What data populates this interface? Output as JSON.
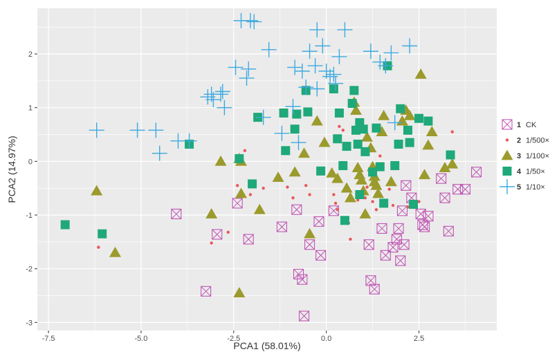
{
  "chart_data": {
    "type": "scatter",
    "xlabel": "PCA1 (58.01%)",
    "ylabel": "PCA2 (14.97%)",
    "xlim": [
      -7.8,
      4.6
    ],
    "ylim": [
      -3.15,
      2.85
    ],
    "x_ticks": [
      -7.5,
      -5.0,
      -2.5,
      0.0,
      2.5
    ],
    "x_tick_labels": [
      "-7.5",
      "-5.0",
      "-2.5",
      "0.0",
      "2.5"
    ],
    "y_ticks": [
      -3,
      -2,
      -1,
      0,
      1,
      2
    ],
    "y_tick_labels": [
      "-3",
      "-2",
      "-1",
      "0",
      "1",
      "2"
    ],
    "grid": true,
    "background": "#ebebeb",
    "legend_position": "right",
    "series": [
      {
        "name": "1 CK",
        "legend_num": "1",
        "legend_text": "CK",
        "marker": "boxed-x",
        "color": "#c055b4",
        "points": [
          [
            -4.05,
            -0.98
          ],
          [
            -2.95,
            -1.36
          ],
          [
            -3.25,
            -2.42
          ],
          [
            -2.4,
            -0.78
          ],
          [
            -2.1,
            -1.45
          ],
          [
            -1.2,
            -1.22
          ],
          [
            -0.8,
            -0.9
          ],
          [
            -0.75,
            -2.1
          ],
          [
            -0.65,
            -2.2
          ],
          [
            -0.6,
            -2.88
          ],
          [
            -0.45,
            -1.55
          ],
          [
            -0.2,
            -1.12
          ],
          [
            -0.15,
            -1.75
          ],
          [
            0.2,
            -0.92
          ],
          [
            1.15,
            -1.55
          ],
          [
            1.2,
            -2.22
          ],
          [
            1.3,
            -2.38
          ],
          [
            1.5,
            -1.25
          ],
          [
            1.6,
            -1.75
          ],
          [
            1.8,
            -1.6
          ],
          [
            1.9,
            -1.45
          ],
          [
            1.95,
            -1.25
          ],
          [
            2.0,
            -1.85
          ],
          [
            2.05,
            -0.92
          ],
          [
            2.1,
            -1.55
          ],
          [
            2.15,
            -0.45
          ],
          [
            2.3,
            -0.68
          ],
          [
            2.55,
            -0.98
          ],
          [
            2.6,
            -1.18
          ],
          [
            2.65,
            -1.22
          ],
          [
            2.75,
            -1.02
          ],
          [
            3.1,
            -0.32
          ],
          [
            3.2,
            -0.68
          ],
          [
            3.3,
            -1.3
          ],
          [
            3.55,
            -0.52
          ],
          [
            3.75,
            -0.52
          ],
          [
            4.05,
            -0.2
          ]
        ]
      },
      {
        "name": "2 1/500×",
        "legend_num": "2",
        "legend_text": "1/500×",
        "marker": "dot",
        "color": "#e8575a",
        "points": [
          [
            -6.15,
            -1.6
          ],
          [
            -3.1,
            -1.52
          ],
          [
            -2.65,
            -1.32
          ],
          [
            -2.4,
            -0.45
          ],
          [
            -2.2,
            0.2
          ],
          [
            -2.05,
            -0.62
          ],
          [
            -1.7,
            -0.5
          ],
          [
            -1.05,
            -0.48
          ],
          [
            -0.9,
            -0.68
          ],
          [
            -0.55,
            -0.45
          ],
          [
            -0.45,
            -0.62
          ],
          [
            0.2,
            -0.62
          ],
          [
            0.25,
            -0.78
          ],
          [
            0.3,
            -0.9
          ],
          [
            0.35,
            0.65
          ],
          [
            0.45,
            0.58
          ],
          [
            0.6,
            -1.15
          ],
          [
            0.65,
            -1.45
          ],
          [
            0.85,
            -0.72
          ],
          [
            1.0,
            -0.5
          ],
          [
            1.05,
            -0.68
          ],
          [
            1.1,
            -0.48
          ],
          [
            1.25,
            -0.75
          ],
          [
            1.35,
            -0.9
          ],
          [
            1.45,
            0.1
          ],
          [
            1.7,
            -0.52
          ],
          [
            1.8,
            -0.82
          ],
          [
            2.2,
            -0.85
          ],
          [
            2.5,
            -0.75
          ],
          [
            3.4,
            0.55
          ]
        ]
      },
      {
        "name": "3 1/100×",
        "legend_num": "3",
        "legend_text": "1/100×",
        "marker": "triangle",
        "color": "#9b9a2c",
        "points": [
          [
            -6.2,
            -0.55
          ],
          [
            -5.7,
            -1.7
          ],
          [
            -3.1,
            -0.98
          ],
          [
            -2.85,
            0.0
          ],
          [
            -2.35,
            0.05
          ],
          [
            -2.3,
            0.0
          ],
          [
            -2.3,
            -0.6
          ],
          [
            -2.35,
            -2.45
          ],
          [
            -1.8,
            -0.9
          ],
          [
            -1.3,
            -0.3
          ],
          [
            -0.85,
            -0.2
          ],
          [
            -0.6,
            0.15
          ],
          [
            -0.45,
            -1.35
          ],
          [
            -0.25,
            0.75
          ],
          [
            -0.05,
            0.35
          ],
          [
            0.15,
            -0.22
          ],
          [
            0.3,
            -0.32
          ],
          [
            0.55,
            -0.5
          ],
          [
            0.65,
            -0.68
          ],
          [
            0.75,
            1.1
          ],
          [
            0.8,
            0.95
          ],
          [
            0.85,
            -0.12
          ],
          [
            0.9,
            -0.25
          ],
          [
            0.95,
            -0.35
          ],
          [
            1.0,
            -0.55
          ],
          [
            1.05,
            -0.98
          ],
          [
            1.1,
            0.45
          ],
          [
            1.2,
            0.25
          ],
          [
            1.25,
            -0.1
          ],
          [
            1.3,
            -0.28
          ],
          [
            1.3,
            -0.38
          ],
          [
            1.35,
            -0.45
          ],
          [
            1.4,
            -0.6
          ],
          [
            1.5,
            0.55
          ],
          [
            1.55,
            0.85
          ],
          [
            1.75,
            -0.38
          ],
          [
            2.05,
            0.75
          ],
          [
            2.15,
            0.95
          ],
          [
            2.25,
            0.85
          ],
          [
            2.55,
            1.62
          ],
          [
            2.65,
            -0.25
          ],
          [
            2.75,
            0.3
          ],
          [
            2.85,
            0.55
          ],
          [
            3.2,
            -0.12
          ],
          [
            3.4,
            -0.05
          ]
        ]
      },
      {
        "name": "4 1/50×",
        "legend_num": "4",
        "legend_text": "1/50×",
        "marker": "square",
        "color": "#1fa879",
        "points": [
          [
            -7.05,
            -1.18
          ],
          [
            -6.05,
            -1.35
          ],
          [
            -3.7,
            0.32
          ],
          [
            -2.35,
            0.05
          ],
          [
            -2.0,
            -0.42
          ],
          [
            -1.85,
            0.82
          ],
          [
            -1.15,
            0.9
          ],
          [
            -1.1,
            0.2
          ],
          [
            -0.85,
            0.6
          ],
          [
            -0.8,
            0.88
          ],
          [
            -0.55,
            1.32
          ],
          [
            -0.5,
            0.92
          ],
          [
            -0.15,
            -0.18
          ],
          [
            0.2,
            1.35
          ],
          [
            0.3,
            0.42
          ],
          [
            0.35,
            0.9
          ],
          [
            0.45,
            -0.08
          ],
          [
            0.5,
            -1.1
          ],
          [
            0.55,
            0.28
          ],
          [
            0.7,
            1.08
          ],
          [
            0.75,
            1.32
          ],
          [
            0.8,
            0.58
          ],
          [
            0.85,
            0.32
          ],
          [
            0.9,
            0.72
          ],
          [
            0.9,
            -0.62
          ],
          [
            1.0,
            0.6
          ],
          [
            1.05,
            0.18
          ],
          [
            1.25,
            -0.2
          ],
          [
            1.35,
            0.62
          ],
          [
            1.45,
            -0.1
          ],
          [
            1.55,
            -0.78
          ],
          [
            1.65,
            1.78
          ],
          [
            1.85,
            -0.08
          ],
          [
            1.95,
            0.32
          ],
          [
            2.0,
            0.98
          ],
          [
            2.2,
            0.58
          ],
          [
            2.25,
            0.35
          ],
          [
            2.35,
            -0.8
          ],
          [
            2.5,
            0.8
          ],
          [
            2.75,
            0.75
          ],
          [
            3.35,
            0.12
          ]
        ]
      },
      {
        "name": "5 1/10×",
        "legend_num": "5",
        "legend_text": "1/10×",
        "marker": "plus",
        "color": "#3da9e0",
        "points": [
          [
            -6.2,
            0.58
          ],
          [
            -5.1,
            0.58
          ],
          [
            -4.6,
            0.58
          ],
          [
            -4.5,
            0.15
          ],
          [
            -4.0,
            0.38
          ],
          [
            -3.7,
            0.38
          ],
          [
            -3.2,
            1.2
          ],
          [
            -3.1,
            1.25
          ],
          [
            -3.05,
            1.15
          ],
          [
            -2.85,
            1.25
          ],
          [
            -2.8,
            1.3
          ],
          [
            -2.75,
            1.0
          ],
          [
            -2.45,
            1.75
          ],
          [
            -2.3,
            2.62
          ],
          [
            -2.15,
            1.55
          ],
          [
            -2.1,
            1.72
          ],
          [
            -2.05,
            2.62
          ],
          [
            -1.95,
            2.6
          ],
          [
            -1.7,
            0.82
          ],
          [
            -1.55,
            2.08
          ],
          [
            -1.2,
            0.52
          ],
          [
            -0.9,
            1.02
          ],
          [
            -0.85,
            1.75
          ],
          [
            -0.75,
            0.35
          ],
          [
            -0.65,
            1.68
          ],
          [
            -0.55,
            1.38
          ],
          [
            -0.45,
            2.05
          ],
          [
            -0.3,
            1.78
          ],
          [
            -0.25,
            2.45
          ],
          [
            -0.25,
            1.35
          ],
          [
            -0.1,
            2.15
          ],
          [
            0.0,
            1.68
          ],
          [
            0.1,
            1.58
          ],
          [
            0.2,
            1.62
          ],
          [
            0.25,
            1.45
          ],
          [
            0.35,
            1.95
          ],
          [
            0.5,
            2.45
          ],
          [
            1.2,
            2.05
          ],
          [
            1.45,
            1.85
          ],
          [
            1.6,
            1.78
          ],
          [
            1.75,
            2.02
          ],
          [
            1.85,
            0.72
          ],
          [
            2.25,
            2.15
          ]
        ]
      }
    ]
  }
}
